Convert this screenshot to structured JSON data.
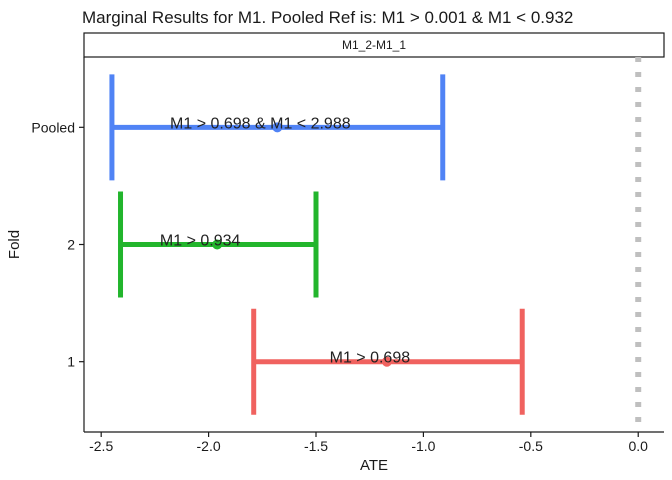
{
  "chart_data": {
    "type": "errorbar",
    "title": "Marginal Results for M1. Pooled Ref is: M1  >  0.001 & M1 < 0.932",
    "facet_label": "M1_2-M1_1",
    "xlabel": "ATE",
    "ylabel": "Fold",
    "xlim": [
      -2.58,
      0.12
    ],
    "x_ticks": [
      -2.5,
      -2.0,
      -1.5,
      -1.0,
      -0.5,
      0.0
    ],
    "x_tick_labels": [
      "-2.5",
      "-2.0",
      "-1.5",
      "-1.0",
      "-0.5",
      "0.0"
    ],
    "categories": [
      "1",
      "2",
      "Pooled"
    ],
    "reference_line": {
      "x": 0.0,
      "color": "#bfbfbf",
      "style": "dotted"
    },
    "series": [
      {
        "category": "Pooled",
        "estimate": -1.68,
        "lower": -2.45,
        "upper": -0.91,
        "color": "#5083f5",
        "annotation": "M1  >  0.698 & M1 < 2.988"
      },
      {
        "category": "2",
        "estimate": -1.96,
        "lower": -2.41,
        "upper": -1.5,
        "color": "#22b52c",
        "annotation": "M1 > 0.934"
      },
      {
        "category": "1",
        "estimate": -1.17,
        "lower": -1.79,
        "upper": -0.54,
        "color": "#f0625f",
        "annotation": "M1 > 0.698"
      }
    ],
    "grid": false,
    "legend": "none"
  }
}
